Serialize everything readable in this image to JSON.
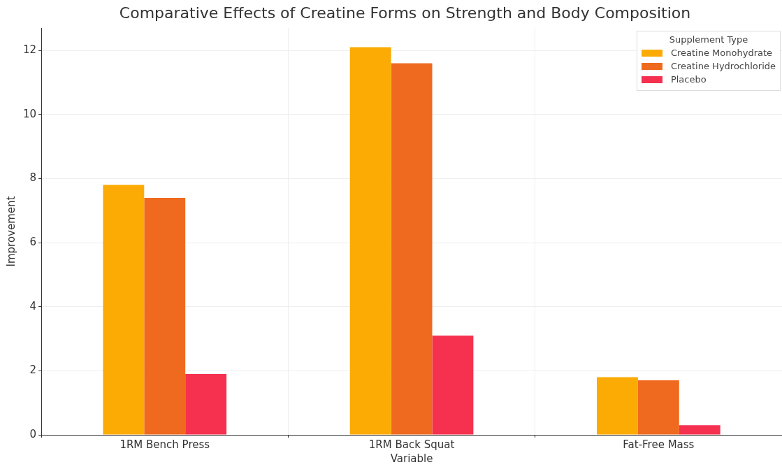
{
  "chart_data": {
    "type": "bar",
    "title": "Comparative Effects of Creatine Forms on Strength and Body Composition",
    "xlabel": "Variable",
    "ylabel": "Improvement",
    "legend_title": "Supplement Type",
    "categories": [
      "1RM Bench Press",
      "1RM Back Squat",
      "Fat-Free Mass"
    ],
    "series": [
      {
        "name": "Creatine Monohydrate",
        "color": "#fbab03",
        "values": [
          7.8,
          12.1,
          1.8
        ]
      },
      {
        "name": "Creatine Hydrochloride",
        "color": "#ef6a1e",
        "values": [
          7.4,
          11.6,
          1.7
        ]
      },
      {
        "name": "Placebo",
        "color": "#f5314f",
        "values": [
          1.9,
          3.1,
          0.3
        ]
      }
    ],
    "ylim": [
      0,
      12.7
    ],
    "yticks": [
      0,
      2,
      4,
      6,
      8,
      10,
      12
    ],
    "grid": true,
    "legend": "top right"
  }
}
